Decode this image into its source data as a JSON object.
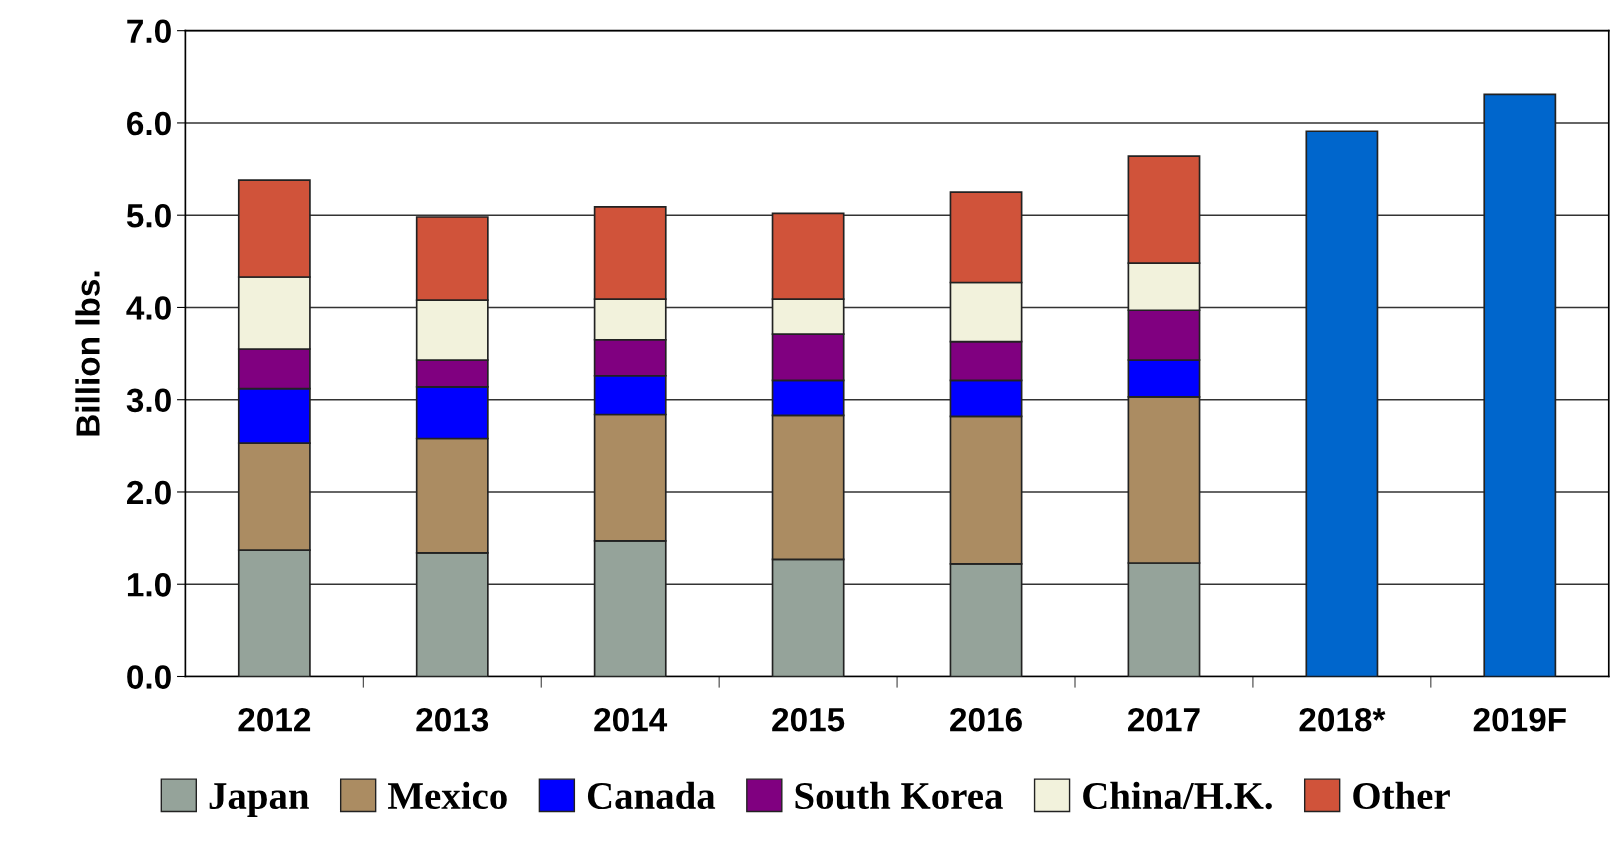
{
  "chart_data": {
    "type": "bar",
    "stacked": true,
    "ylabel": "Billion lbs.",
    "categories": [
      "2012",
      "2013",
      "2014",
      "2015",
      "2016",
      "2017",
      "2018*",
      "2019F"
    ],
    "series": [
      {
        "name": "Japan",
        "color": "#95a39a",
        "values": [
          1.37,
          1.34,
          1.47,
          1.27,
          1.22,
          1.23,
          null,
          null
        ]
      },
      {
        "name": "Mexico",
        "color": "#ab8c62",
        "values": [
          1.16,
          1.24,
          1.37,
          1.56,
          1.6,
          1.8,
          null,
          null
        ]
      },
      {
        "name": "Canada",
        "color": "#0000ff",
        "values": [
          0.59,
          0.56,
          0.42,
          0.38,
          0.39,
          0.4,
          null,
          null
        ]
      },
      {
        "name": "South Korea",
        "color": "#800080",
        "values": [
          0.43,
          0.29,
          0.39,
          0.5,
          0.42,
          0.54,
          null,
          null
        ]
      },
      {
        "name": "China/H.K.",
        "color": "#f2f2dc",
        "values": [
          0.78,
          0.65,
          0.44,
          0.38,
          0.64,
          0.51,
          null,
          null
        ]
      },
      {
        "name": "Other",
        "color": "#d0533a",
        "values": [
          1.05,
          0.9,
          1.0,
          0.93,
          0.98,
          1.16,
          null,
          null
        ]
      },
      {
        "color": "#0066cc",
        "values": [
          null,
          null,
          null,
          null,
          null,
          null,
          5.91,
          6.31
        ]
      }
    ],
    "ylim": [
      0,
      7
    ],
    "yticks": [
      {
        "value": 0,
        "label": "0.0"
      },
      {
        "value": 1,
        "label": "1.0"
      },
      {
        "value": 2,
        "label": "2.0"
      },
      {
        "value": 3,
        "label": "3.0"
      },
      {
        "value": 4,
        "label": "4.0"
      },
      {
        "value": 5,
        "label": "5.0"
      },
      {
        "value": 6,
        "label": "6.0"
      },
      {
        "value": 7,
        "label": "7.0"
      }
    ],
    "grid": "y",
    "legend": "bottom"
  }
}
